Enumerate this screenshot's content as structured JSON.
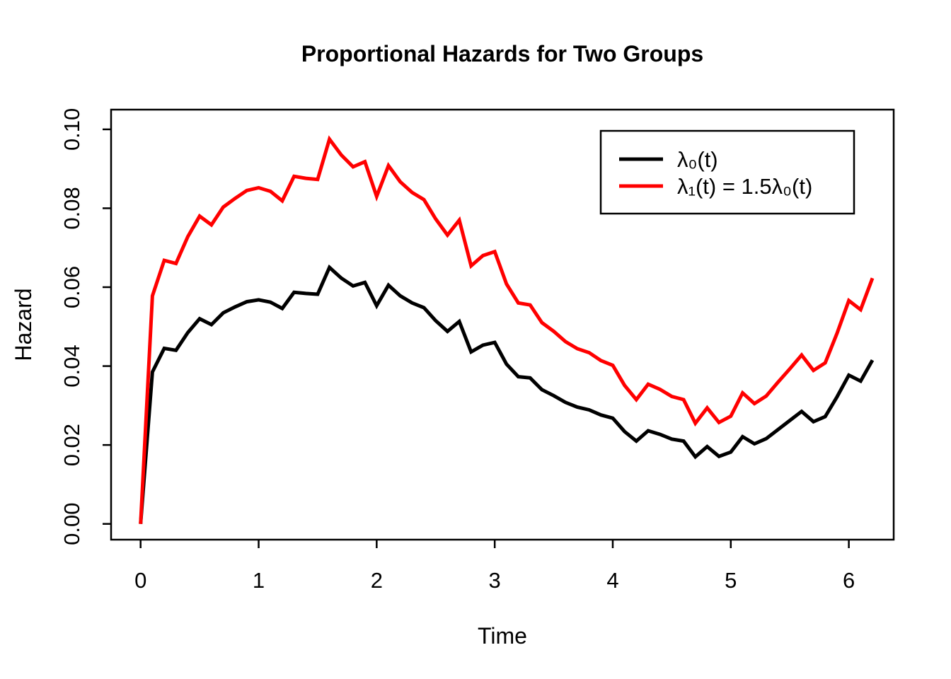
{
  "figure": {
    "background": "#FFFFFF"
  },
  "chart_data": {
    "type": "line",
    "title": "Proportional Hazards for Two Groups",
    "xlabel": "Time",
    "ylabel": "Hazard",
    "grid": false,
    "xlim": [
      -0.25,
      6.38
    ],
    "ylim": [
      -0.004,
      0.105
    ],
    "xticks": {
      "values": [
        0,
        1,
        2,
        3,
        4,
        5,
        6
      ],
      "labels": [
        "0",
        "1",
        "2",
        "3",
        "4",
        "5",
        "6"
      ]
    },
    "yticks": {
      "values": [
        0.0,
        0.02,
        0.04,
        0.06,
        0.08,
        0.1
      ],
      "labels": [
        "0.00",
        "0.02",
        "0.04",
        "0.06",
        "0.08",
        "0.10"
      ]
    },
    "x": [
      0.0,
      0.1,
      0.2,
      0.3,
      0.4,
      0.5,
      0.6,
      0.7,
      0.8,
      0.9,
      1.0,
      1.1,
      1.2,
      1.3,
      1.4,
      1.5,
      1.6,
      1.7,
      1.8,
      1.9,
      2.0,
      2.1,
      2.2,
      2.3,
      2.4,
      2.5,
      2.6,
      2.7,
      2.8,
      2.9,
      3.0,
      3.1,
      3.2,
      3.3,
      3.4,
      3.5,
      3.6,
      3.7,
      3.8,
      3.9,
      4.0,
      4.1,
      4.2,
      4.3,
      4.4,
      4.5,
      4.6,
      4.7,
      4.8,
      4.9,
      5.0,
      5.1,
      5.2,
      5.3,
      5.4,
      5.5,
      5.6,
      5.7,
      5.8,
      5.9,
      6.0,
      6.1,
      6.2
    ],
    "series": [
      {
        "name": "λ₀(t)",
        "color": "#000000",
        "values": [
          0.0,
          0.0385,
          0.0445,
          0.044,
          0.0485,
          0.052,
          0.0505,
          0.0535,
          0.055,
          0.0563,
          0.0568,
          0.0562,
          0.0546,
          0.0587,
          0.0584,
          0.0582,
          0.065,
          0.0623,
          0.0603,
          0.0612,
          0.0553,
          0.0605,
          0.0578,
          0.056,
          0.0548,
          0.0515,
          0.0488,
          0.0513,
          0.0436,
          0.0453,
          0.046,
          0.0405,
          0.0373,
          0.037,
          0.034,
          0.0325,
          0.0308,
          0.0296,
          0.0289,
          0.0276,
          0.0268,
          0.0234,
          0.021,
          0.0236,
          0.0227,
          0.0215,
          0.021,
          0.017,
          0.0196,
          0.0171,
          0.0182,
          0.0221,
          0.0203,
          0.0216,
          0.0239,
          0.0262,
          0.0285,
          0.0259,
          0.0272,
          0.0322,
          0.0377,
          0.0362,
          0.0415
        ]
      },
      {
        "name": "λ₁(t) = 1.5λ₀(t)",
        "color": "#FF0000",
        "values": [
          0.0,
          0.0578,
          0.0668,
          0.066,
          0.0728,
          0.078,
          0.0758,
          0.0803,
          0.0825,
          0.0845,
          0.0852,
          0.0843,
          0.0819,
          0.0881,
          0.0876,
          0.0873,
          0.0975,
          0.0935,
          0.0905,
          0.0918,
          0.083,
          0.0908,
          0.0867,
          0.084,
          0.0822,
          0.0773,
          0.0732,
          0.077,
          0.0654,
          0.068,
          0.069,
          0.0608,
          0.056,
          0.0555,
          0.051,
          0.0488,
          0.0462,
          0.0444,
          0.0434,
          0.0414,
          0.0402,
          0.0351,
          0.0315,
          0.0354,
          0.0341,
          0.0323,
          0.0315,
          0.0255,
          0.0294,
          0.0257,
          0.0273,
          0.0332,
          0.0305,
          0.0324,
          0.0359,
          0.0393,
          0.0428,
          0.0389,
          0.0408,
          0.0483,
          0.0566,
          0.0543,
          0.0623
        ]
      }
    ],
    "legend": {
      "position": "top-right",
      "entries": [
        {
          "label": "λ₀(t)",
          "color": "#000000"
        },
        {
          "label": "λ₁(t) = 1.5λ₀(t)",
          "color": "#FF0000"
        }
      ]
    }
  }
}
